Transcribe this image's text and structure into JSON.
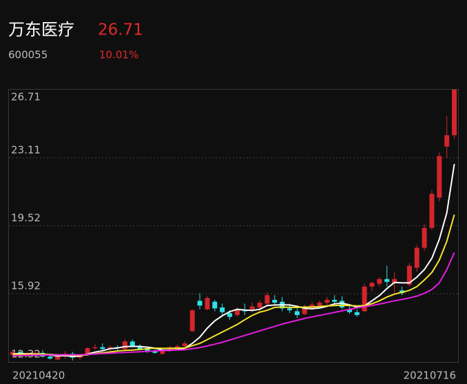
{
  "header": {
    "name": "万东医疗",
    "price": "26.71",
    "code": "600055",
    "change": "10.01%"
  },
  "chart_data": {
    "type": "candlestick",
    "categories": [
      "20210420",
      null,
      null,
      null,
      null,
      null,
      null,
      null,
      null,
      null,
      null,
      null,
      null,
      null,
      null,
      null,
      null,
      null,
      null,
      null,
      null,
      null,
      null,
      null,
      null,
      null,
      null,
      null,
      null,
      null,
      null,
      null,
      null,
      null,
      null,
      null,
      null,
      null,
      null,
      null,
      null,
      null,
      null,
      null,
      null,
      null,
      null,
      null,
      null,
      null,
      null,
      null,
      null,
      null,
      null,
      null,
      null,
      null,
      null,
      "20210716"
    ],
    "open": [
      12.7,
      12.85,
      12.7,
      12.75,
      12.8,
      12.6,
      12.45,
      12.65,
      12.75,
      12.55,
      12.7,
      13.05,
      13.1,
      13.0,
      13.1,
      13.0,
      13.4,
      13.15,
      13.0,
      12.9,
      12.75,
      12.9,
      13.0,
      13.15,
      13.95,
      15.55,
      15.1,
      15.5,
      15.2,
      14.9,
      14.8,
      15.05,
      15.1,
      15.2,
      15.4,
      15.6,
      15.5,
      15.15,
      15.0,
      14.85,
      15.25,
      15.3,
      15.45,
      15.6,
      15.55,
      15.1,
      14.95,
      15.0,
      16.3,
      16.45,
      16.7,
      16.5,
      16.1,
      16.4,
      17.3,
      18.35,
      19.4,
      21.0,
      23.7,
      24.3
    ],
    "high": [
      12.95,
      12.95,
      12.85,
      12.9,
      12.95,
      12.75,
      12.7,
      12.9,
      12.85,
      12.75,
      13.1,
      13.25,
      13.3,
      13.2,
      13.2,
      13.5,
      13.5,
      13.25,
      13.1,
      13.05,
      12.95,
      13.15,
      13.25,
      13.4,
      15.1,
      15.95,
      15.8,
      15.6,
      15.4,
      15.05,
      15.2,
      15.4,
      15.45,
      15.6,
      16.0,
      15.85,
      15.75,
      15.4,
      15.15,
      15.35,
      15.5,
      15.55,
      15.75,
      15.85,
      15.8,
      15.3,
      15.1,
      16.45,
      16.55,
      16.8,
      17.4,
      17.05,
      16.3,
      17.55,
      18.5,
      19.6,
      21.4,
      23.4,
      25.3,
      26.71
    ],
    "low": [
      12.55,
      12.6,
      12.6,
      12.62,
      12.55,
      12.45,
      12.4,
      12.5,
      12.4,
      12.45,
      12.65,
      12.95,
      12.95,
      12.9,
      12.95,
      12.95,
      13.1,
      12.95,
      12.8,
      12.75,
      12.7,
      12.85,
      12.95,
      13.05,
      13.9,
      15.1,
      15.05,
      15.0,
      14.75,
      14.55,
      14.7,
      14.8,
      14.95,
      14.95,
      15.3,
      15.3,
      15.0,
      14.9,
      14.65,
      14.8,
      15.05,
      15.2,
      15.3,
      15.35,
      15.1,
      14.85,
      14.7,
      14.95,
      16.05,
      16.3,
      16.3,
      15.9,
      15.85,
      16.3,
      17.1,
      18.2,
      19.3,
      20.8,
      23.1,
      24.1
    ],
    "close": [
      12.85,
      12.7,
      12.75,
      12.8,
      12.6,
      12.5,
      12.65,
      12.75,
      12.55,
      12.7,
      13.05,
      13.1,
      13.0,
      13.1,
      13.05,
      13.4,
      13.15,
      13.0,
      12.9,
      12.8,
      12.9,
      13.1,
      13.15,
      13.3,
      15.05,
      15.3,
      15.7,
      15.15,
      14.95,
      14.7,
      15.1,
      15.0,
      15.25,
      15.45,
      15.85,
      15.45,
      15.15,
      15.05,
      14.8,
      15.25,
      15.35,
      15.45,
      15.6,
      15.5,
      15.2,
      14.95,
      14.8,
      16.3,
      16.5,
      16.7,
      16.55,
      16.7,
      15.95,
      17.4,
      18.35,
      19.4,
      21.2,
      23.2,
      24.3,
      26.71
    ],
    "up_color": "#d3262c",
    "down_color": "#2fe0e6",
    "lines": [
      {
        "color": "#ffffff",
        "values": [
          12.75,
          12.76,
          12.75,
          12.74,
          12.73,
          12.68,
          12.64,
          12.65,
          12.61,
          12.63,
          12.74,
          12.84,
          12.91,
          13.02,
          13.06,
          13.13,
          13.14,
          13.14,
          13.1,
          13.05,
          12.95,
          12.94,
          12.97,
          13.05,
          13.3,
          13.63,
          14.11,
          14.49,
          14.76,
          14.98,
          15.1,
          15.06,
          15.04,
          15.1,
          15.3,
          15.33,
          15.34,
          15.33,
          15.26,
          15.15,
          15.13,
          15.17,
          15.26,
          15.39,
          15.42,
          15.34,
          15.21,
          15.29,
          15.55,
          15.83,
          16.2,
          16.52,
          16.5,
          16.5,
          16.8,
          17.2,
          17.8,
          18.8,
          20.2,
          22.78
        ]
      },
      {
        "color": "#f5e52a",
        "values": [
          12.72,
          12.73,
          12.73,
          12.73,
          12.73,
          12.72,
          12.7,
          12.69,
          12.67,
          12.67,
          12.7,
          12.76,
          12.8,
          12.85,
          12.9,
          12.93,
          12.95,
          12.98,
          13.02,
          13.05,
          13.04,
          13.04,
          13.05,
          13.06,
          13.18,
          13.3,
          13.5,
          13.7,
          13.9,
          14.1,
          14.3,
          14.55,
          14.78,
          14.95,
          15.05,
          15.2,
          15.22,
          15.2,
          15.2,
          15.22,
          15.22,
          15.25,
          15.28,
          15.3,
          15.32,
          15.3,
          15.28,
          15.3,
          15.4,
          15.55,
          15.75,
          15.9,
          16.0,
          16.1,
          16.3,
          16.65,
          17.05,
          17.7,
          18.7,
          20.1
        ]
      },
      {
        "color": "#e41ee0",
        "values": [
          12.65,
          12.66,
          12.67,
          12.68,
          12.68,
          12.69,
          12.69,
          12.7,
          12.7,
          12.7,
          12.72,
          12.74,
          12.76,
          12.78,
          12.8,
          12.82,
          12.84,
          12.86,
          12.88,
          12.9,
          12.92,
          12.93,
          12.95,
          12.97,
          13.02,
          13.08,
          13.16,
          13.26,
          13.36,
          13.48,
          13.6,
          13.72,
          13.84,
          13.96,
          14.08,
          14.2,
          14.32,
          14.42,
          14.52,
          14.62,
          14.7,
          14.78,
          14.86,
          14.94,
          15.02,
          15.1,
          15.18,
          15.24,
          15.3,
          15.38,
          15.46,
          15.55,
          15.62,
          15.7,
          15.8,
          15.95,
          16.15,
          16.5,
          17.2,
          18.1
        ]
      }
    ],
    "ylim": [
      12.32,
      26.71
    ],
    "yticks": [
      12.32,
      15.92,
      19.52,
      23.11,
      26.71
    ],
    "grid": true
  }
}
